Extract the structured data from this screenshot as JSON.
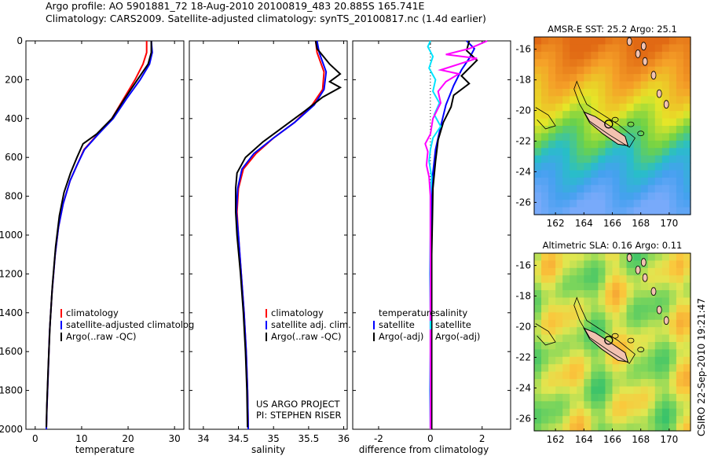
{
  "header": {
    "line1": "Argo profile: AO 5901881_72 18-Aug-2010 20100819_483 20.885S 165.741E",
    "line2": "Climatology: CARS2009. Satellite-adjusted climatology: synTS_20100817.nc (1.4d earlier)"
  },
  "stamp": "CSIRO 22-Sep-2010 19:21:47",
  "project_text": [
    "US ARGO PROJECT",
    "PI: STEPHEN RISER"
  ],
  "colors": {
    "climatology": "#ff0000",
    "satellite": "#0000ff",
    "argo": "#000000",
    "temp_diff_sat": "#00e5ff",
    "sal_diff_argo": "#ff00ff",
    "land": "#f2c2b0"
  },
  "chart_data": [
    {
      "type": "line",
      "xlabel": "temperature",
      "ylabel": "",
      "xlim": [
        -2,
        32
      ],
      "ylim": [
        2000,
        0
      ],
      "xticks": [
        0,
        10,
        20,
        30
      ],
      "yticks": [
        0,
        200,
        400,
        600,
        800,
        1000,
        1200,
        1400,
        1600,
        1800,
        2000
      ],
      "legend": [
        "climatology",
        "satellite-adjusted climatolog",
        "Argo(..raw -QC)"
      ],
      "series": [
        {
          "name": "climatology",
          "color": "#ff0000",
          "points": [
            [
              24,
              0
            ],
            [
              24,
              60
            ],
            [
              23.2,
              120
            ],
            [
              21.5,
              200
            ],
            [
              19,
              300
            ],
            [
              16.5,
              400
            ],
            [
              13.5,
              480
            ],
            [
              10.5,
              560
            ],
            [
              9,
              640
            ],
            [
              7.5,
              720
            ],
            [
              6,
              840
            ],
            [
              5,
              960
            ],
            [
              4.3,
              1100
            ],
            [
              3.6,
              1300
            ],
            [
              3.1,
              1500
            ],
            [
              2.8,
              1700
            ],
            [
              2.5,
              1900
            ],
            [
              2.4,
              2000
            ]
          ]
        },
        {
          "name": "satellite-adjusted climatolog",
          "color": "#0000ff",
          "points": [
            [
              25,
              0
            ],
            [
              25.2,
              60
            ],
            [
              24.6,
              120
            ],
            [
              22.6,
              200
            ],
            [
              19.6,
              300
            ],
            [
              16.8,
              400
            ],
            [
              13.6,
              480
            ],
            [
              10.6,
              560
            ],
            [
              9,
              640
            ],
            [
              7.5,
              720
            ],
            [
              6,
              840
            ],
            [
              5,
              960
            ],
            [
              4.3,
              1100
            ],
            [
              3.6,
              1300
            ],
            [
              3.1,
              1500
            ],
            [
              2.8,
              1700
            ],
            [
              2.5,
              1900
            ],
            [
              2.4,
              2000
            ]
          ]
        },
        {
          "name": "Argo(..raw -QC)",
          "color": "#000000",
          "points": [
            [
              25,
              0
            ],
            [
              25,
              60
            ],
            [
              24.3,
              120
            ],
            [
              22,
              200
            ],
            [
              19.2,
              300
            ],
            [
              16.5,
              400
            ],
            [
              13.2,
              480
            ],
            [
              10.3,
              530
            ],
            [
              9,
              600
            ],
            [
              7.6,
              680
            ],
            [
              6.2,
              780
            ],
            [
              5.2,
              900
            ],
            [
              4.4,
              1060
            ],
            [
              3.7,
              1260
            ],
            [
              3.2,
              1460
            ],
            [
              2.8,
              1680
            ],
            [
              2.5,
              1880
            ],
            [
              2.4,
              1990
            ]
          ]
        }
      ]
    },
    {
      "type": "line",
      "xlabel": "salinity",
      "ylabel": "",
      "xlim": [
        33.8,
        36.05
      ],
      "ylim": [
        2000,
        0
      ],
      "xticks": [
        34,
        34.5,
        35,
        35.5,
        36
      ],
      "legend": [
        "climatology",
        "satellite adj. clim.",
        "Argo(..raw -QC)"
      ],
      "series": [
        {
          "name": "climatology",
          "color": "#ff0000",
          "points": [
            [
              35.6,
              0
            ],
            [
              35.62,
              60
            ],
            [
              35.72,
              160
            ],
            [
              35.7,
              250
            ],
            [
              35.55,
              330
            ],
            [
              35.3,
              420
            ],
            [
              35.0,
              500
            ],
            [
              34.75,
              580
            ],
            [
              34.57,
              660
            ],
            [
              34.5,
              760
            ],
            [
              34.48,
              880
            ],
            [
              34.5,
              1000
            ],
            [
              34.54,
              1200
            ],
            [
              34.58,
              1400
            ],
            [
              34.61,
              1600
            ],
            [
              34.63,
              1800
            ],
            [
              34.64,
              2000
            ]
          ]
        },
        {
          "name": "satellite adj. clim.",
          "color": "#0000ff",
          "points": [
            [
              35.62,
              0
            ],
            [
              35.65,
              60
            ],
            [
              35.75,
              160
            ],
            [
              35.72,
              250
            ],
            [
              35.58,
              330
            ],
            [
              35.3,
              420
            ],
            [
              35.0,
              500
            ],
            [
              34.72,
              580
            ],
            [
              34.55,
              660
            ],
            [
              34.49,
              760
            ],
            [
              34.47,
              880
            ],
            [
              34.5,
              1000
            ],
            [
              34.54,
              1200
            ],
            [
              34.58,
              1400
            ],
            [
              34.61,
              1600
            ],
            [
              34.63,
              1800
            ],
            [
              34.64,
              2000
            ]
          ]
        },
        {
          "name": "Argo(..raw -QC)",
          "color": "#000000",
          "points": [
            [
              35.6,
              0
            ],
            [
              35.62,
              40
            ],
            [
              35.8,
              120
            ],
            [
              35.95,
              170
            ],
            [
              35.8,
              210
            ],
            [
              35.95,
              240
            ],
            [
              35.7,
              290
            ],
            [
              35.45,
              360
            ],
            [
              35.15,
              440
            ],
            [
              34.85,
              520
            ],
            [
              34.6,
              600
            ],
            [
              34.48,
              680
            ],
            [
              34.46,
              760
            ],
            [
              34.46,
              880
            ],
            [
              34.48,
              1000
            ],
            [
              34.53,
              1200
            ],
            [
              34.57,
              1400
            ],
            [
              34.6,
              1600
            ],
            [
              34.62,
              1800
            ],
            [
              34.63,
              1990
            ]
          ]
        }
      ]
    },
    {
      "type": "line",
      "xlabel": "difference from climatology",
      "ylabel": "",
      "xlim": [
        -3,
        3.1
      ],
      "ylim": [
        2000,
        0
      ],
      "xticks": [
        -2,
        0,
        2
      ],
      "legend": [
        "temperature",
        "satellite",
        "Argo(-adj)",
        "salinity",
        "satellite",
        "Argo(-adj)"
      ],
      "series": [
        {
          "name": "temperature satellite",
          "color": "#0000ff",
          "points": [
            [
              1.4,
              0
            ],
            [
              1.7,
              40
            ],
            [
              1.5,
              90
            ],
            [
              1.2,
              150
            ],
            [
              0.9,
              230
            ],
            [
              0.6,
              330
            ],
            [
              0.4,
              440
            ],
            [
              0.2,
              560
            ],
            [
              0.1,
              680
            ],
            [
              0.05,
              800
            ],
            [
              0.05,
              1000
            ],
            [
              0.05,
              1200
            ],
            [
              0.05,
              1400
            ],
            [
              0.05,
              1600
            ],
            [
              0.05,
              1800
            ],
            [
              0.03,
              2000
            ]
          ]
        },
        {
          "name": "Argo(-adj)",
          "color": "#000000",
          "points": [
            [
              1.5,
              0
            ],
            [
              1.4,
              50
            ],
            [
              1.8,
              100
            ],
            [
              1.2,
              180
            ],
            [
              1.5,
              220
            ],
            [
              0.9,
              280
            ],
            [
              0.8,
              340
            ],
            [
              0.5,
              420
            ],
            [
              0.3,
              510
            ],
            [
              0.2,
              620
            ],
            [
              0.1,
              760
            ],
            [
              0.08,
              900
            ],
            [
              0.05,
              1100
            ],
            [
              0.05,
              1400
            ],
            [
              0.05,
              1700
            ],
            [
              0.05,
              2000
            ]
          ]
        },
        {
          "name": "salinity satellite",
          "color": "#00e5ff",
          "points": [
            [
              0,
              0
            ],
            [
              -0.1,
              30
            ],
            [
              0.1,
              80
            ],
            [
              -0.05,
              140
            ],
            [
              0.2,
              200
            ],
            [
              0.1,
              260
            ],
            [
              0.35,
              320
            ],
            [
              0.15,
              380
            ],
            [
              0.4,
              440
            ],
            [
              0.1,
              500
            ],
            [
              0.0,
              560
            ],
            [
              -0.05,
              620
            ],
            [
              0.05,
              700
            ],
            [
              0,
              800
            ],
            [
              0,
              1000
            ],
            [
              -0.02,
              1200
            ],
            [
              0,
              1400
            ],
            [
              0,
              1600
            ],
            [
              -0.02,
              1800
            ],
            [
              0,
              2000
            ]
          ]
        },
        {
          "name": "Argo(-adj)",
          "color": "#ff00ff",
          "points": [
            [
              2.2,
              0
            ],
            [
              1.5,
              40
            ],
            [
              0.6,
              70
            ],
            [
              1.8,
              90
            ],
            [
              0.4,
              150
            ],
            [
              1.1,
              170
            ],
            [
              0.6,
              210
            ],
            [
              0.3,
              260
            ],
            [
              0.4,
              320
            ],
            [
              0.1,
              400
            ],
            [
              0.0,
              480
            ],
            [
              -0.2,
              530
            ],
            [
              -0.1,
              570
            ],
            [
              -0.15,
              640
            ],
            [
              -0.05,
              700
            ],
            [
              0,
              800
            ],
            [
              0,
              1000
            ],
            [
              0,
              1200
            ],
            [
              0,
              1400
            ],
            [
              0,
              1600
            ],
            [
              0,
              1800
            ],
            [
              0,
              2000
            ]
          ]
        }
      ]
    },
    {
      "type": "heatmap",
      "title": "AMSR-E SST: 25.2 Argo: 25.1",
      "xlim": [
        160.5,
        171.5
      ],
      "ylim": [
        -26.8,
        -15.2
      ],
      "xticks": [
        162,
        164,
        166,
        168,
        170
      ],
      "yticks": [
        -16,
        -18,
        -20,
        -22,
        -24,
        -26
      ],
      "argo_position": [
        165.741,
        -20.885
      ]
    },
    {
      "type": "heatmap",
      "title": "Altimetric SLA: 0.16 Argo: 0.11",
      "xlim": [
        160.5,
        171.5
      ],
      "ylim": [
        -26.8,
        -15.2
      ],
      "xticks": [
        162,
        164,
        166,
        168,
        170
      ],
      "yticks": [
        -16,
        -18,
        -20,
        -22,
        -24,
        -26
      ],
      "argo_position": [
        165.741,
        -20.885
      ]
    }
  ]
}
